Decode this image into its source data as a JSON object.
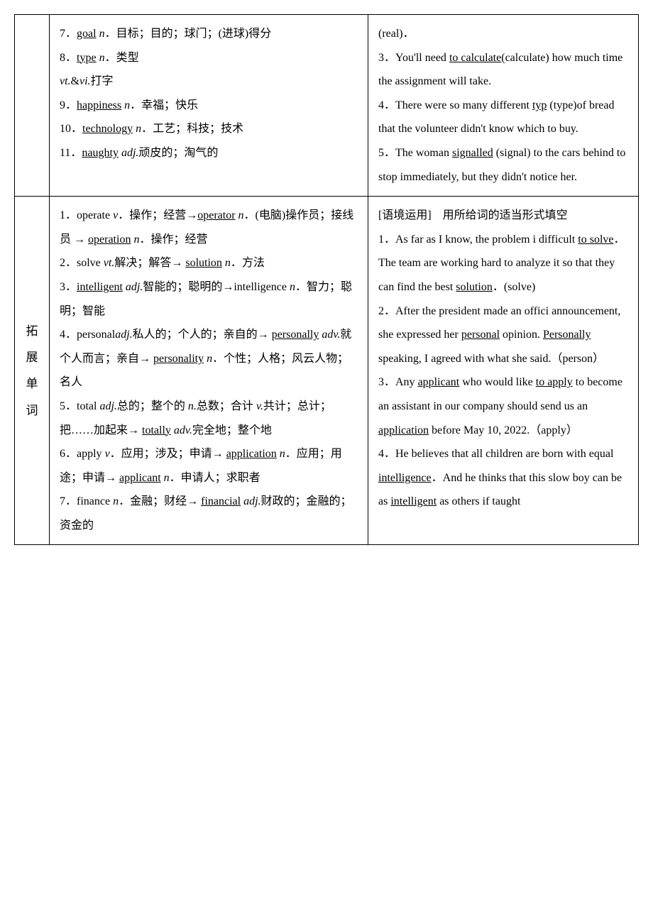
{
  "row1": {
    "mid": {
      "e7_num": "7．",
      "e7_word": "goal",
      "e7_pos": "n",
      "e7_def": "．目标；目的；球门；(进球)得分",
      "e8_num": "8．",
      "e8_word": "type",
      "e8_pos": "n",
      "e8_def": "．类型",
      "e8_pos2": "vt.",
      "e8_amp": "&",
      "e8_pos3": "vi.",
      "e8_def2": "打字",
      "e9_num": "9．",
      "e9_word": "happiness",
      "e9_pos": "n",
      "e9_def": "．幸福；快乐",
      "e10_num": "10．",
      "e10_word": "technology",
      "e10_pos": "n",
      "e10_def": "．工艺；科技；技术",
      "e11_num": "11．",
      "e11_word": "naughty",
      "e11_pos": "adj.",
      "e11_def": "顽皮的；淘气的"
    },
    "right": {
      "s1": "(real)．",
      "s3a": "3．You'll need ",
      "s3u": "to calculate",
      "s3b": "(calculate) how much time the assignment will take.",
      "s4a": "4．There were so many different ",
      "s4u": "typ",
      "s4b": "(type)of bread that the volunteer didn't know which to buy.",
      "s5a": "5．The woman ",
      "s5u": "signalled",
      "s5b": " (signal) to the cars behind to stop immediately, but they didn't notice her."
    }
  },
  "row2": {
    "side": {
      "c1": "拓",
      "c2": "展",
      "c3": "单",
      "c4": "词"
    },
    "mid": {
      "e1a": "1．operate ",
      "e1pos": "v",
      "e1b": "．操作；经营→",
      "e1u1": "operator",
      "e1pos2": "n",
      "e1c": "．(电脑)操作员；接线员 → ",
      "e1u2": "operation",
      "e1pos3": "n",
      "e1d": "．操作；经营",
      "e2a": "2．solve ",
      "e2pos": "vt.",
      "e2b": "解决；解答→ ",
      "e2u": "solution",
      "e2pos2": "n",
      "e2c": "．方法",
      "e3a": "3．",
      "e3u": "intelligent",
      "e3pos": " adj.",
      "e3b": "智能的；聪明的→intelligence ",
      "e3pos2": "n",
      "e3c": "．智力；聪明；智能",
      "e4a": "4．personal",
      "e4pos": "adj.",
      "e4b": "私人的；个人的；亲自的→ ",
      "e4u1": "personally",
      "e4pos2": " adv.",
      "e4c": "就个人而言；亲自→ ",
      "e4u2": "personality",
      "e4pos3": " n",
      "e4d": "．个性；人格；风云人物；名人",
      "e5a": "5．total ",
      "e5pos": "adj.",
      "e5b": "总的；整个的 ",
      "e5pos2": "n.",
      "e5c": "总数；合计 ",
      "e5pos3": "v.",
      "e5d": "共计；总计；把……加起来→ ",
      "e5u": "totally",
      "e5pos4": " adv.",
      "e5e": "完全地；整个地",
      "e6a": "6．apply ",
      "e6pos": "v",
      "e6b": "．应用；涉及；申请→ ",
      "e6u1": "application",
      "e6pos2": " n",
      "e6c": "．应用；用途；申请→ ",
      "e6u2": "applicant",
      "e6pos3": " n",
      "e6d": "．申请人；求职者",
      "e7a": "7．finance ",
      "e7pos": "n",
      "e7b": "．金融；财经→ ",
      "e7u": "financial",
      "e7pos2": "adj.",
      "e7c": "财政的；金融的；资金的"
    },
    "right": {
      "hdr": "[语境运用]　用所给词的适当形式填空",
      "s1a": "1．As far as I know, the problem i",
      "s1b": "difficult ",
      "s1u1": "to solve",
      "s1c": "．The team are working hard to analyze it so that they can find the best ",
      "s1u2": "solution",
      "s1d": "．(solve)",
      "s2a": "2．After the president made an offici",
      "s2b": "announcement, she expressed her ",
      "s2u1": "personal",
      "s2c": " opinion. ",
      "s2u2": "Personally",
      "s2d": " speaking, I agreed with what she said.（person）",
      "s3a": "3．Any ",
      "s3u1": "applicant",
      "s3b": " who would like ",
      "s3u2": "to apply",
      "s3c": " to become an assistant in our company should send us an ",
      "s3u3": "application",
      "s3d": " before May 10, 2022.（apply）",
      "s4a": "4．He believes that all children are born with equal ",
      "s4u1": "intelligence",
      "s4b": "．And he thinks that this slow boy can be as ",
      "s4u2": "intelligent",
      "s4c": " as others if taught"
    }
  }
}
